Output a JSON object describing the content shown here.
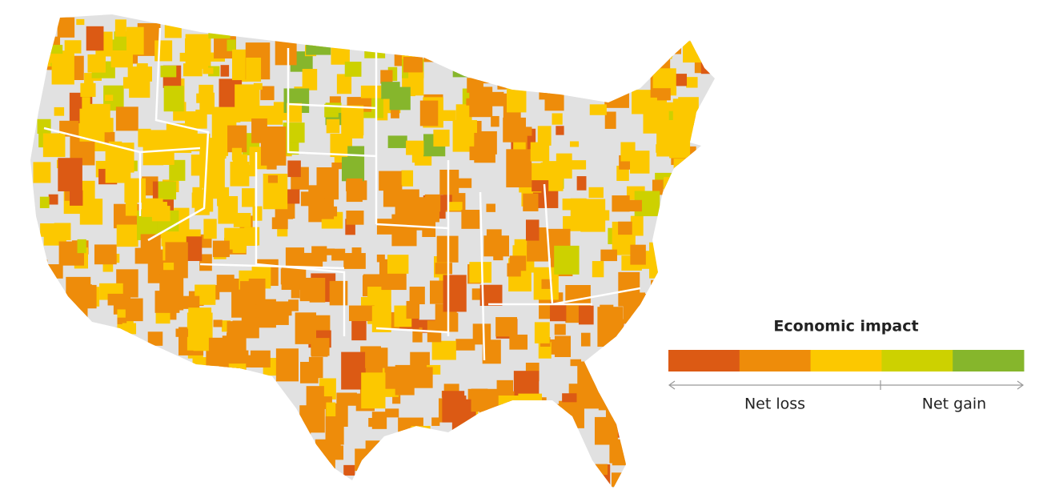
{
  "legend": {
    "title": "Economic impact",
    "colors": [
      "#dc5a14",
      "#ee8c0a",
      "#fcc800",
      "#cdd100",
      "#86b62c"
    ],
    "labels": [
      "Net loss",
      "Net gain"
    ]
  }
}
